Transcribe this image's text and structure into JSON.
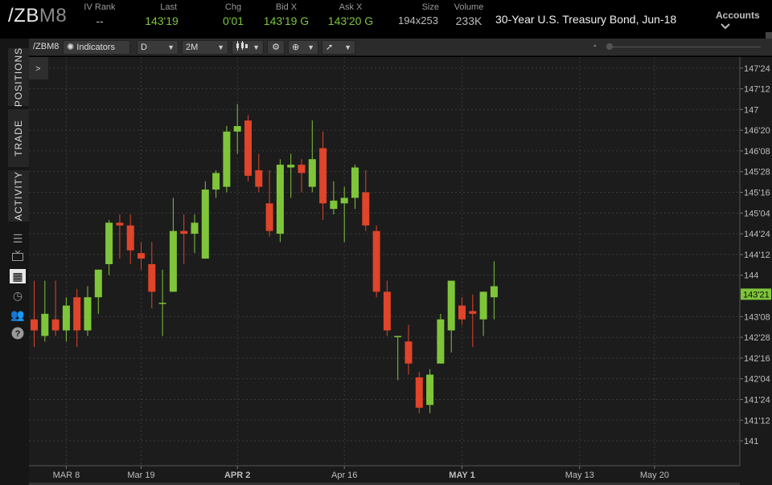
{
  "quote": {
    "symbol_main": "/ZB",
    "symbol_suffix": "M8",
    "iv_rank_label": "IV Rank",
    "iv_rank_value": "--",
    "last_label": "Last",
    "last_value": "143'19",
    "chg_label": "Chg",
    "chg_value": "0'01",
    "bid_label": "Bid X",
    "bid_value": "143'19 G",
    "ask_label": "Ask X",
    "ask_value": "143'20 G",
    "size_label": "Size",
    "size_value": "194x253",
    "volume_label": "Volume",
    "volume_value": "233K",
    "description": "30-Year U.S. Treasury Bond, Jun-18",
    "accounts_label": "Accounts"
  },
  "toolbar": {
    "symbol": "/ZBM8",
    "indicators_label": "Indicators",
    "period": "D",
    "range": "2M",
    "zoom_minus": "-"
  },
  "leftrail": {
    "tabs": [
      "POSITIONS",
      "TRADE",
      "ACTIVITY"
    ],
    "expand_label": ">"
  },
  "colors": {
    "up": "#7fc53a",
    "down": "#e0442a",
    "bg": "#1c1c1c",
    "grid": "#3a3a3a",
    "price_tag": "#7fc53a"
  },
  "chart_data": {
    "type": "candlestick",
    "title": "",
    "xlabel": "",
    "ylabel": "",
    "current_price_label": "143'21",
    "y_axis_ticks": [
      {
        "label": "147'24",
        "value": 147.75
      },
      {
        "label": "147'12",
        "value": 147.375
      },
      {
        "label": "147",
        "value": 147.0
      },
      {
        "label": "146'20",
        "value": 146.625
      },
      {
        "label": "146'08",
        "value": 146.25
      },
      {
        "label": "145'28",
        "value": 145.875
      },
      {
        "label": "145'16",
        "value": 145.5
      },
      {
        "label": "145'04",
        "value": 145.125
      },
      {
        "label": "144'24",
        "value": 144.75
      },
      {
        "label": "144'12",
        "value": 144.375
      },
      {
        "label": "144",
        "value": 144.0
      },
      {
        "label": "143'08",
        "value": 143.25
      },
      {
        "label": "142'28",
        "value": 142.875
      },
      {
        "label": "142'16",
        "value": 142.5
      },
      {
        "label": "142'04",
        "value": 142.125
      },
      {
        "label": "141'24",
        "value": 141.75
      },
      {
        "label": "141'12",
        "value": 141.375
      },
      {
        "label": "141",
        "value": 141.0
      }
    ],
    "ylim": [
      140.55,
      147.95
    ],
    "current_price": 143.656,
    "x_axis_ticks": [
      {
        "label": "MAR 8",
        "day": 3,
        "bold": false
      },
      {
        "label": "Mar 19",
        "day": 10,
        "bold": false
      },
      {
        "label": "APR 2",
        "day": 19,
        "bold": true
      },
      {
        "label": "Apr 16",
        "day": 29,
        "bold": false
      },
      {
        "label": "MAY 1",
        "day": 40,
        "bold": true
      },
      {
        "label": "May 13",
        "day": 51,
        "bold": false
      },
      {
        "label": "May 20",
        "day": 58,
        "bold": false
      }
    ],
    "xlim": [
      0,
      63
    ],
    "candles": [
      {
        "o": 143.2,
        "h": 143.9,
        "l": 142.7,
        "c": 143.0
      },
      {
        "o": 142.9,
        "h": 143.9,
        "l": 142.8,
        "c": 143.3
      },
      {
        "o": 143.2,
        "h": 143.9,
        "l": 142.9,
        "c": 143.0
      },
      {
        "o": 143.0,
        "h": 143.6,
        "l": 142.8,
        "c": 143.45
      },
      {
        "o": 143.6,
        "h": 143.75,
        "l": 142.7,
        "c": 143.0
      },
      {
        "o": 143.0,
        "h": 143.8,
        "l": 142.9,
        "c": 143.6
      },
      {
        "o": 143.6,
        "h": 144.1,
        "l": 143.3,
        "c": 144.1
      },
      {
        "o": 144.2,
        "h": 145.0,
        "l": 144.0,
        "c": 144.95
      },
      {
        "o": 144.95,
        "h": 145.1,
        "l": 144.3,
        "c": 144.9
      },
      {
        "o": 144.9,
        "h": 145.1,
        "l": 144.2,
        "c": 144.45
      },
      {
        "o": 144.4,
        "h": 144.6,
        "l": 144.1,
        "c": 144.3
      },
      {
        "o": 144.2,
        "h": 144.6,
        "l": 143.4,
        "c": 143.7
      },
      {
        "o": 143.5,
        "h": 144.1,
        "l": 142.9,
        "c": 143.5
      },
      {
        "o": 143.7,
        "h": 145.4,
        "l": 143.7,
        "c": 144.8
      },
      {
        "o": 144.8,
        "h": 145.1,
        "l": 144.2,
        "c": 144.75
      },
      {
        "o": 144.75,
        "h": 145.1,
        "l": 144.4,
        "c": 144.95
      },
      {
        "o": 144.3,
        "h": 145.7,
        "l": 144.3,
        "c": 145.55
      },
      {
        "o": 145.55,
        "h": 145.9,
        "l": 145.4,
        "c": 145.85
      },
      {
        "o": 145.6,
        "h": 146.7,
        "l": 145.5,
        "c": 146.6
      },
      {
        "o": 146.6,
        "h": 147.1,
        "l": 146.2,
        "c": 146.7
      },
      {
        "o": 146.8,
        "h": 146.9,
        "l": 145.7,
        "c": 145.8
      },
      {
        "o": 145.9,
        "h": 146.2,
        "l": 145.5,
        "c": 145.6
      },
      {
        "o": 145.3,
        "h": 145.9,
        "l": 144.7,
        "c": 144.8
      },
      {
        "o": 144.75,
        "h": 146.1,
        "l": 144.6,
        "c": 146.0
      },
      {
        "o": 145.95,
        "h": 146.2,
        "l": 145.4,
        "c": 146.0
      },
      {
        "o": 146.0,
        "h": 146.1,
        "l": 145.5,
        "c": 145.85
      },
      {
        "o": 145.6,
        "h": 146.8,
        "l": 145.5,
        "c": 146.1
      },
      {
        "o": 146.3,
        "h": 146.6,
        "l": 145.0,
        "c": 145.3
      },
      {
        "o": 145.2,
        "h": 145.7,
        "l": 145.1,
        "c": 145.35
      },
      {
        "o": 145.3,
        "h": 145.6,
        "l": 144.6,
        "c": 145.4
      },
      {
        "o": 145.4,
        "h": 146.0,
        "l": 145.2,
        "c": 145.95
      },
      {
        "o": 145.5,
        "h": 145.9,
        "l": 144.8,
        "c": 144.9
      },
      {
        "o": 144.8,
        "h": 144.9,
        "l": 143.6,
        "c": 143.7
      },
      {
        "o": 143.7,
        "h": 143.9,
        "l": 142.9,
        "c": 143.0
      },
      {
        "o": 142.9,
        "h": 142.9,
        "l": 142.1,
        "c": 142.9
      },
      {
        "o": 142.8,
        "h": 143.1,
        "l": 142.2,
        "c": 142.4
      },
      {
        "o": 142.15,
        "h": 142.25,
        "l": 141.5,
        "c": 141.6
      },
      {
        "o": 141.65,
        "h": 142.3,
        "l": 141.5,
        "c": 142.2
      },
      {
        "o": 142.4,
        "h": 143.3,
        "l": 142.4,
        "c": 143.2
      },
      {
        "o": 143.0,
        "h": 143.9,
        "l": 142.6,
        "c": 143.9
      },
      {
        "o": 143.45,
        "h": 143.6,
        "l": 143.1,
        "c": 143.2
      },
      {
        "o": 143.35,
        "h": 143.65,
        "l": 142.7,
        "c": 143.3
      },
      {
        "o": 143.2,
        "h": 143.7,
        "l": 142.9,
        "c": 143.7
      },
      {
        "o": 143.6,
        "h": 144.25,
        "l": 143.2,
        "c": 143.8
      }
    ]
  }
}
